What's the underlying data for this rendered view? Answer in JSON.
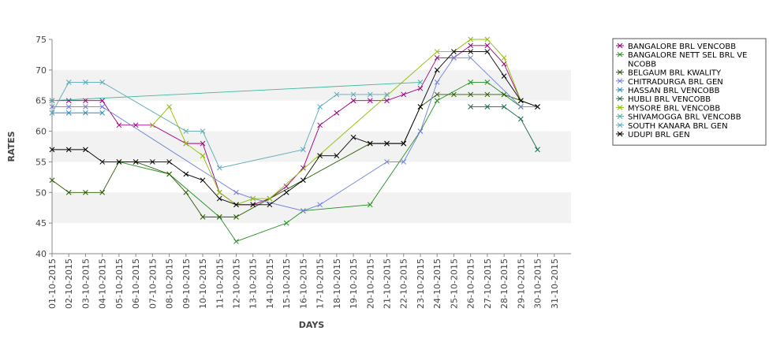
{
  "chart_data": {
    "type": "line",
    "title": "",
    "xlabel": "DAYS",
    "ylabel": "RATES",
    "ylim": [
      40,
      75
    ],
    "yticks": [
      40,
      45,
      50,
      55,
      60,
      65,
      70,
      75
    ],
    "grid": "alternating horizontal bands",
    "legend_position": "right",
    "marker": "x",
    "categories": [
      "01-10-2015",
      "02-10-2015",
      "03-10-2015",
      "04-10-2015",
      "05-10-2015",
      "06-10-2015",
      "07-10-2015",
      "08-10-2015",
      "09-10-2015",
      "10-10-2015",
      "11-10-2015",
      "12-10-2015",
      "13-10-2015",
      "14-10-2015",
      "15-10-2015",
      "16-10-2015",
      "17-10-2015",
      "18-10-2015",
      "19-10-2015",
      "20-10-2015",
      "21-10-2015",
      "22-10-2015",
      "23-10-2015",
      "24-10-2015",
      "25-10-2015",
      "26-10-2015",
      "27-10-2015",
      "28-10-2015",
      "29-10-2015",
      "30-10-2015",
      "31-10-2015"
    ],
    "series": [
      {
        "name": "BANGALORE BRL VENCOBB",
        "color": "#a0007f",
        "values": [
          65,
          65,
          65,
          65,
          61,
          61,
          61,
          null,
          58,
          58,
          50,
          48,
          48,
          49,
          51,
          54,
          61,
          63,
          65,
          65,
          65,
          66,
          67,
          72,
          72,
          74,
          74,
          71,
          65,
          null,
          null
        ]
      },
      {
        "name": "BANGALORE NETT SEL BRL VENCOBB",
        "legend_lines": [
          "BANGALORE NETT SEL BRL VE",
          "NCOBB"
        ],
        "color": "#1f8f1f",
        "values": [
          null,
          null,
          null,
          null,
          55,
          null,
          null,
          53,
          null,
          null,
          46,
          42,
          null,
          null,
          45,
          47,
          null,
          null,
          null,
          48,
          null,
          null,
          60,
          65,
          null,
          68,
          68,
          66,
          64,
          null,
          null
        ]
      },
      {
        "name": "BELGAUM BRL KWALITY",
        "color": "#2a5a00",
        "values": [
          52,
          50,
          50,
          50,
          55,
          55,
          null,
          53,
          50,
          46,
          46,
          46,
          null,
          null,
          null,
          null,
          null,
          null,
          null,
          58,
          58,
          58,
          64,
          66,
          66,
          66,
          66,
          66,
          65,
          64,
          null
        ]
      },
      {
        "name": "CHITRADURGA BRL GEN",
        "color": "#6d7fdb",
        "values": [
          64,
          64,
          64,
          64,
          null,
          null,
          null,
          null,
          null,
          null,
          null,
          50,
          49,
          null,
          null,
          47,
          48,
          null,
          null,
          null,
          55,
          55,
          60,
          68,
          72,
          72,
          null,
          null,
          64,
          64,
          null
        ]
      },
      {
        "name": "HASSAN BRL VENCOBB",
        "color": "#2f8fb8",
        "values": [
          63,
          63,
          63,
          63,
          null,
          null,
          null,
          null,
          null,
          null,
          null,
          null,
          null,
          null,
          null,
          null,
          null,
          null,
          null,
          null,
          null,
          null,
          null,
          null,
          null,
          null,
          null,
          null,
          null,
          null,
          null
        ]
      },
      {
        "name": "HUBLI BRL VENCOBB",
        "color": "#1a6650",
        "values": [
          null,
          null,
          null,
          null,
          null,
          null,
          null,
          null,
          null,
          null,
          null,
          null,
          null,
          null,
          null,
          null,
          null,
          null,
          null,
          null,
          null,
          null,
          null,
          null,
          null,
          64,
          64,
          64,
          62,
          57,
          null
        ]
      },
      {
        "name": "MYSORE BRL VENCOBB",
        "color": "#8cbf00",
        "values": [
          null,
          null,
          null,
          null,
          null,
          null,
          61,
          64,
          58,
          56,
          50,
          48,
          49,
          49,
          null,
          null,
          null,
          null,
          null,
          null,
          null,
          null,
          null,
          73,
          73,
          75,
          75,
          72,
          65,
          null,
          null
        ]
      },
      {
        "name": "SHIVAMOGGA BRL VENCOBB",
        "color": "#3cb8a0",
        "values": [
          65,
          null,
          null,
          null,
          null,
          null,
          null,
          null,
          null,
          null,
          null,
          null,
          null,
          null,
          null,
          null,
          null,
          null,
          null,
          null,
          null,
          null,
          68,
          null,
          null,
          null,
          null,
          null,
          null,
          null,
          null
        ]
      },
      {
        "name": "SOUTH KANARA BRL GEN",
        "color": "#58a8b8",
        "values": [
          63,
          68,
          68,
          68,
          null,
          null,
          null,
          null,
          60,
          60,
          54,
          null,
          null,
          null,
          null,
          57,
          64,
          66,
          66,
          66,
          66,
          null,
          null,
          null,
          null,
          null,
          null,
          null,
          null,
          null,
          null
        ]
      },
      {
        "name": "UDUPI BRL GEN",
        "color": "#000000",
        "values": [
          57,
          57,
          57,
          55,
          55,
          55,
          55,
          55,
          53,
          52,
          49,
          48,
          48,
          48,
          50,
          52,
          56,
          56,
          59,
          58,
          58,
          58,
          64,
          70,
          73,
          73,
          73,
          69,
          65,
          64,
          null
        ]
      }
    ]
  }
}
